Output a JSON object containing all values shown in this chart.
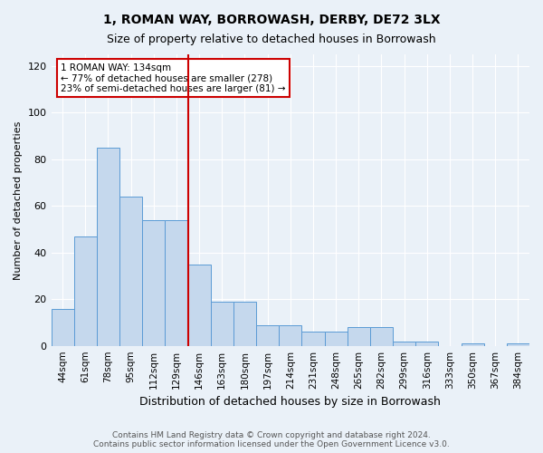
{
  "title": "1, ROMAN WAY, BORROWASH, DERBY, DE72 3LX",
  "subtitle": "Size of property relative to detached houses in Borrowash",
  "xlabel": "Distribution of detached houses by size in Borrowash",
  "ylabel": "Number of detached properties",
  "categories": [
    "44sqm",
    "61sqm",
    "78sqm",
    "95sqm",
    "112sqm",
    "129sqm",
    "146sqm",
    "163sqm",
    "180sqm",
    "197sqm",
    "214sqm",
    "231sqm",
    "248sqm",
    "265sqm",
    "282sqm",
    "299sqm",
    "316sqm",
    "333sqm",
    "350sqm",
    "367sqm",
    "384sqm"
  ],
  "bar_values": [
    16,
    47,
    85,
    64,
    54,
    54,
    35,
    19,
    19,
    9,
    9,
    6,
    6,
    8,
    8,
    2,
    2,
    0,
    1,
    0,
    1
  ],
  "bar_color": "#c5d8ed",
  "bar_edge_color": "#5b9bd5",
  "vline_x": 5.5,
  "vline_color": "#cc0000",
  "annotation_text": "1 ROMAN WAY: 134sqm\n← 77% of detached houses are smaller (278)\n23% of semi-detached houses are larger (81) →",
  "annotation_box_color": "#ffffff",
  "annotation_box_edge": "#cc0000",
  "ylim": [
    0,
    125
  ],
  "yticks": [
    0,
    20,
    40,
    60,
    80,
    100,
    120
  ],
  "footer": "Contains HM Land Registry data © Crown copyright and database right 2024.\nContains public sector information licensed under the Open Government Licence v3.0.",
  "bg_color": "#eaf1f8",
  "plot_bg_color": "#eaf1f8"
}
